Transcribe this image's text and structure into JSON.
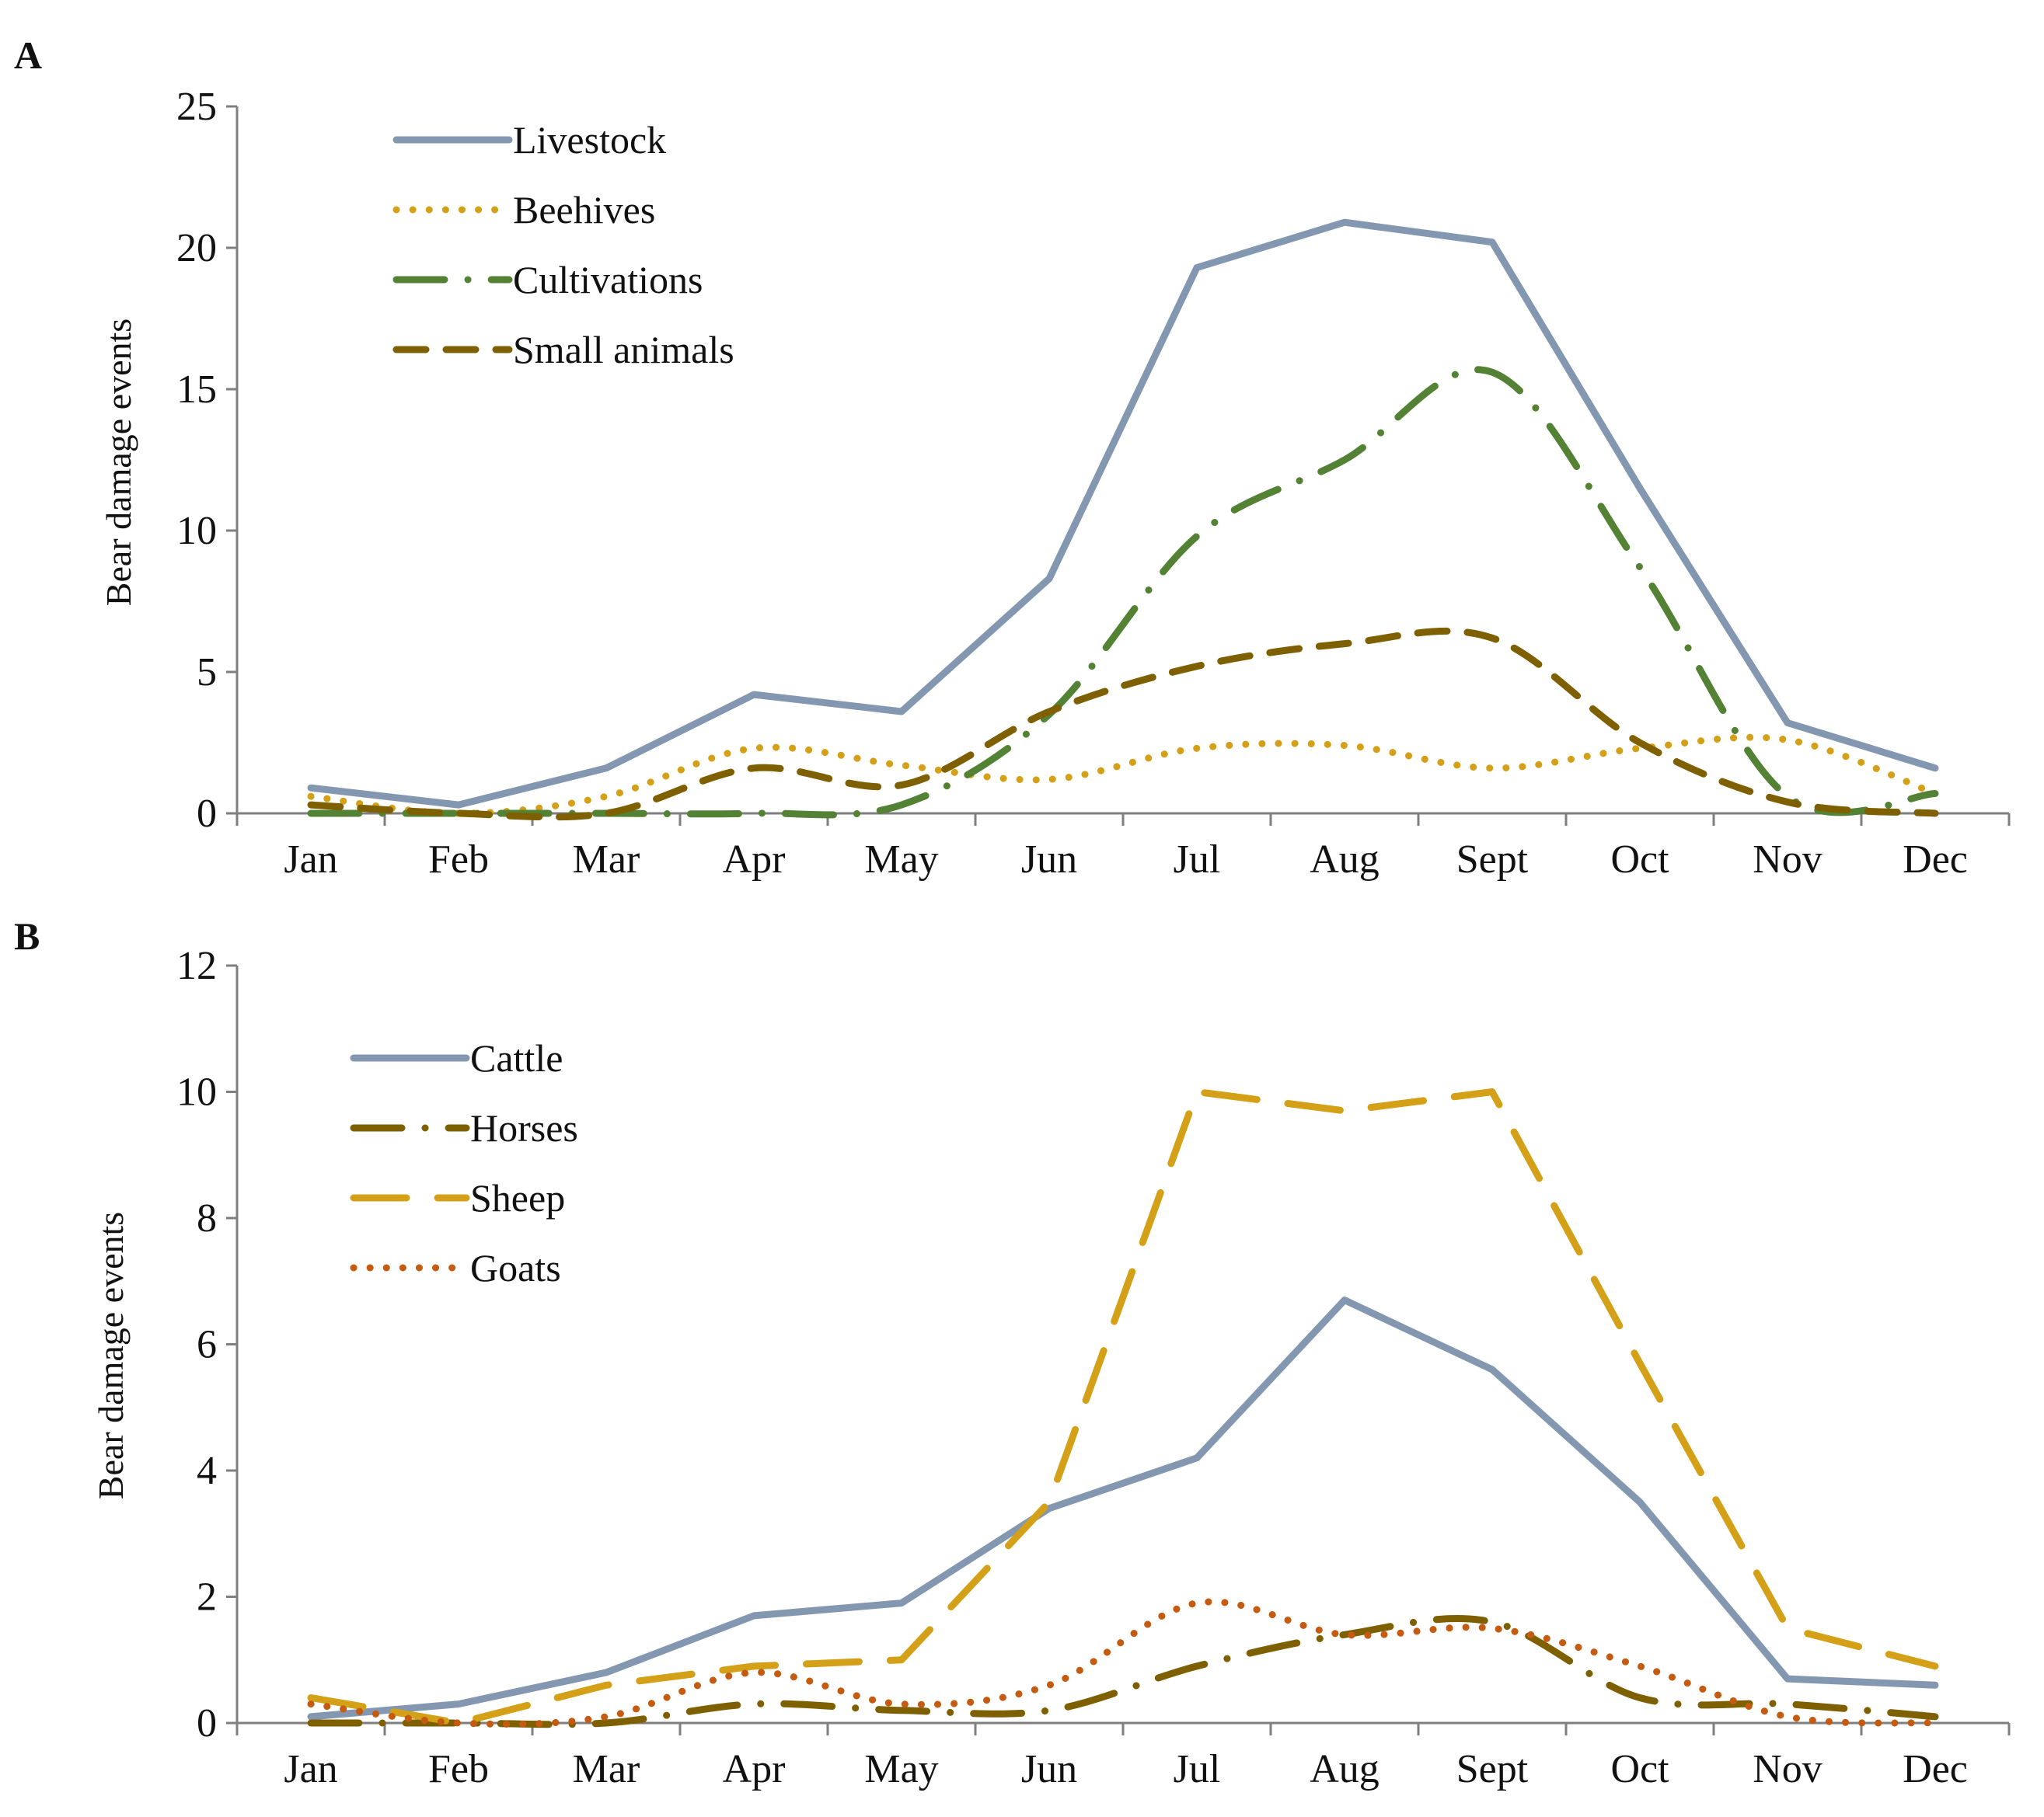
{
  "chart_data": [
    {
      "panel": "A",
      "type": "line",
      "title": "",
      "xlabel": "",
      "ylabel": "Bear damage  events",
      "ylim": [
        0,
        25
      ],
      "yticks": [
        0,
        5,
        10,
        15,
        20,
        25
      ],
      "legend_position": "top-left",
      "categories": [
        "Jan",
        "Feb",
        "Mar",
        "Apr",
        "May",
        "Jun",
        "Jul",
        "Aug",
        "Sept",
        "Oct",
        "Nov",
        "Dec"
      ],
      "series": [
        {
          "name": "Livestock",
          "color": "#8497b0",
          "style": "solid",
          "smooth": false,
          "values": [
            0.9,
            0.3,
            1.6,
            4.2,
            3.6,
            8.3,
            19.3,
            20.9,
            20.2,
            11.5,
            3.2,
            1.6
          ]
        },
        {
          "name": "Beehives",
          "color": "#d4a017",
          "style": "dotted",
          "smooth": true,
          "values": [
            0.6,
            0.0,
            0.6,
            2.3,
            1.7,
            1.2,
            2.3,
            2.4,
            1.6,
            2.3,
            2.6,
            0.7
          ]
        },
        {
          "name": "Cultivations",
          "color": "#548235",
          "style": "dashdot",
          "smooth": true,
          "values": [
            0.0,
            0.0,
            0.0,
            0.0,
            0.3,
            3.5,
            9.8,
            12.5,
            15.6,
            8.7,
            0.6,
            0.7
          ]
        },
        {
          "name": "Small animals",
          "color": "#7f6000",
          "style": "dashed",
          "smooth": true,
          "values": [
            0.3,
            0.0,
            0.0,
            1.6,
            1.0,
            3.6,
            5.2,
            6.0,
            6.2,
            2.5,
            0.4,
            0.0
          ]
        }
      ]
    },
    {
      "panel": "B",
      "type": "line",
      "title": "",
      "xlabel": "",
      "ylabel": "Bear damage  events",
      "ylim": [
        0,
        12
      ],
      "yticks": [
        0,
        2,
        4,
        6,
        8,
        10,
        12
      ],
      "legend_position": "top-left",
      "categories": [
        "Jan",
        "Feb",
        "Mar",
        "Apr",
        "May",
        "Jun",
        "Jul",
        "Aug",
        "Sept",
        "Oct",
        "Nov",
        "Dec"
      ],
      "series": [
        {
          "name": "Cattle",
          "color": "#8497b0",
          "style": "solid",
          "smooth": false,
          "values": [
            0.1,
            0.3,
            0.8,
            1.7,
            1.9,
            3.4,
            4.2,
            6.7,
            5.6,
            3.5,
            0.7,
            0.6
          ]
        },
        {
          "name": "Horses",
          "color": "#7f6000",
          "style": "dashdot",
          "smooth": true,
          "values": [
            0.0,
            0.0,
            0.0,
            0.3,
            0.2,
            0.2,
            0.9,
            1.4,
            1.6,
            0.4,
            0.3,
            0.1
          ]
        },
        {
          "name": "Sheep",
          "color": "#d4a017",
          "style": "longdash",
          "smooth": false,
          "values": [
            0.4,
            0.0,
            0.6,
            0.9,
            1.0,
            3.5,
            10.0,
            9.7,
            10.0,
            5.7,
            1.5,
            0.9
          ]
        },
        {
          "name": "Goats",
          "color": "#c55a11",
          "style": "dotted",
          "smooth": true,
          "values": [
            0.3,
            0.0,
            0.1,
            0.8,
            0.3,
            0.6,
            1.9,
            1.4,
            1.5,
            0.9,
            0.1,
            0.0
          ]
        }
      ]
    }
  ]
}
